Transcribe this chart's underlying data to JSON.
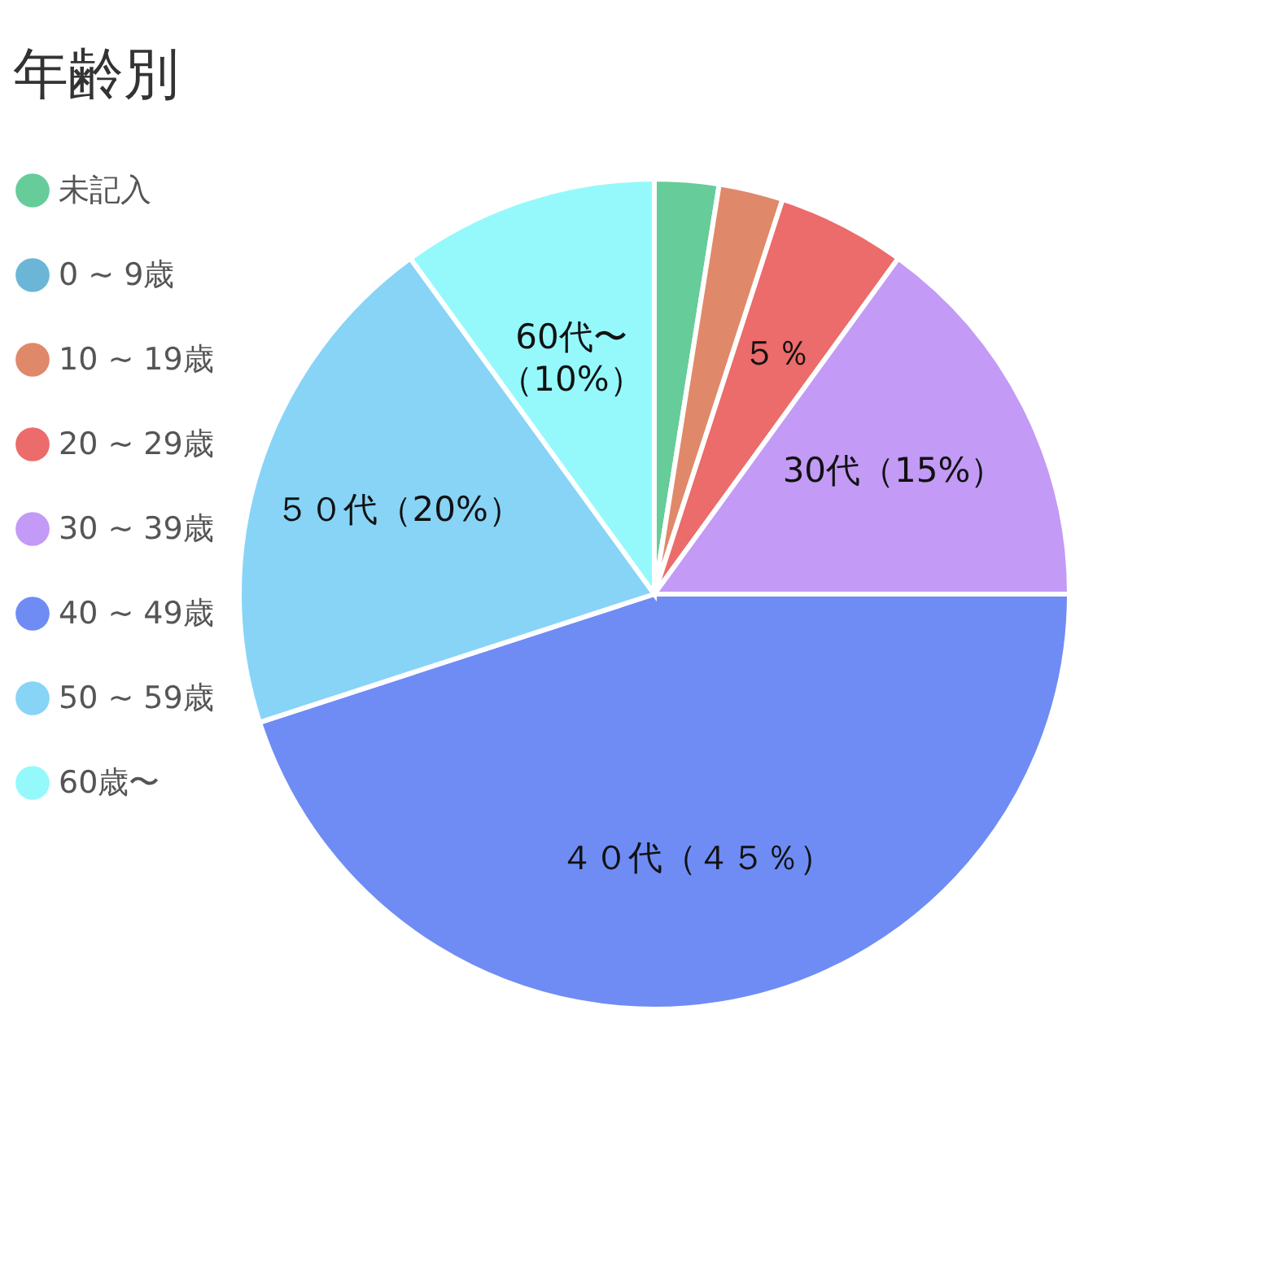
{
  "chart_data": {
    "type": "pie",
    "title": "年齢別",
    "categories": [
      "未記入",
      "0 ~ 9歳",
      "10 ~ 19歳",
      "20 ~ 29歳",
      "30 ~ 39歳",
      "40 ~ 49歳",
      "50 ~ 59歳",
      "60歳〜"
    ],
    "values": [
      2.5,
      0,
      2.5,
      5,
      15,
      45,
      20,
      10
    ],
    "colors": [
      "#66cc99",
      "#6bb6d6",
      "#e0896a",
      "#ec6b6b",
      "#c39af5",
      "#6f8cf5",
      "#87d4f7",
      "#95f9fc"
    ],
    "value_labels": [
      null,
      null,
      null,
      "５％",
      "30代（15%）",
      "４０代（４５％）",
      "５０代（20%）",
      "60代〜（10%）"
    ],
    "legend": "left"
  }
}
